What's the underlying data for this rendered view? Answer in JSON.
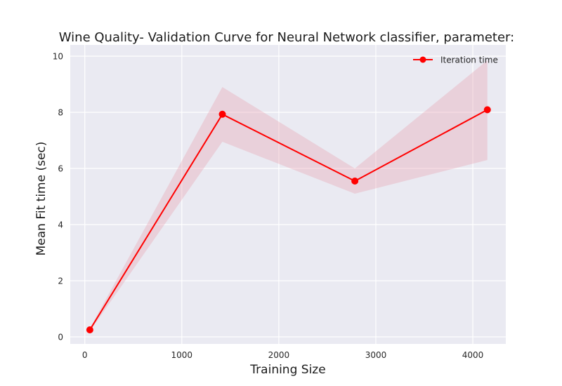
{
  "chart_data": {
    "type": "line",
    "title": "Wine Quality- Validation Curve for Neural Network classifier, parameter:",
    "xlabel": "Training Size",
    "ylabel": "Mean Fit time (sec)",
    "xlim": [
      -150,
      4340
    ],
    "ylim": [
      -0.25,
      10.4
    ],
    "xticks": [
      0,
      1000,
      2000,
      3000,
      4000
    ],
    "yticks": [
      0,
      2,
      4,
      6,
      8,
      10
    ],
    "grid": true,
    "legend_position": "top-right",
    "series": [
      {
        "name": "Iteration time",
        "color": "#ff0000",
        "band_color": "#e8a0b0",
        "x": [
          52,
          1418,
          2784,
          4150
        ],
        "y": [
          0.25,
          7.93,
          5.55,
          8.09
        ],
        "lower": [
          0.2,
          6.95,
          5.1,
          6.3
        ],
        "upper": [
          0.3,
          8.9,
          6.0,
          9.85
        ]
      }
    ]
  }
}
